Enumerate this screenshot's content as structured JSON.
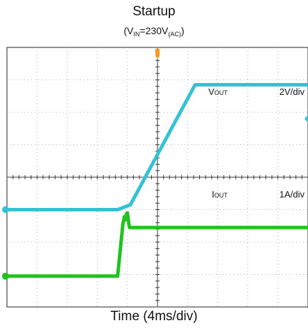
{
  "chart_data": {
    "type": "line",
    "title": "Startup",
    "subtitle": {
      "prefix": "(V",
      "sub1": "IN",
      "mid": "=230V",
      "sub2": "(AC)",
      "suffix": ")"
    },
    "xlabel": "Time (4ms/div)",
    "xlim": [
      -20,
      20
    ],
    "ylim": [
      0,
      8
    ],
    "grid": true,
    "series": [
      {
        "name": "VOUT",
        "label_main": "V",
        "label_sub": "OUT",
        "scale": "2V/div",
        "color": "#33c2d4",
        "ground_level": 3,
        "x": [
          -20,
          -5.3,
          -3.6,
          5.0,
          20
        ],
        "y": [
          3.0,
          3.0,
          3.15,
          6.85,
          6.85
        ]
      },
      {
        "name": "IOUT",
        "label_main": "I",
        "label_sub": "OUT",
        "scale": "1A/div",
        "color": "#22c21f",
        "ground_level": 0.95,
        "x": [
          -20,
          -5.3,
          -4.6,
          -4.4,
          -4.3,
          -4.1,
          -4.0,
          -3.8,
          -3.7,
          20
        ],
        "y": [
          0.95,
          0.95,
          2.55,
          2.78,
          2.68,
          2.88,
          2.9,
          2.55,
          2.45,
          2.45
        ]
      }
    ],
    "trigger_color": "#f59a23"
  }
}
